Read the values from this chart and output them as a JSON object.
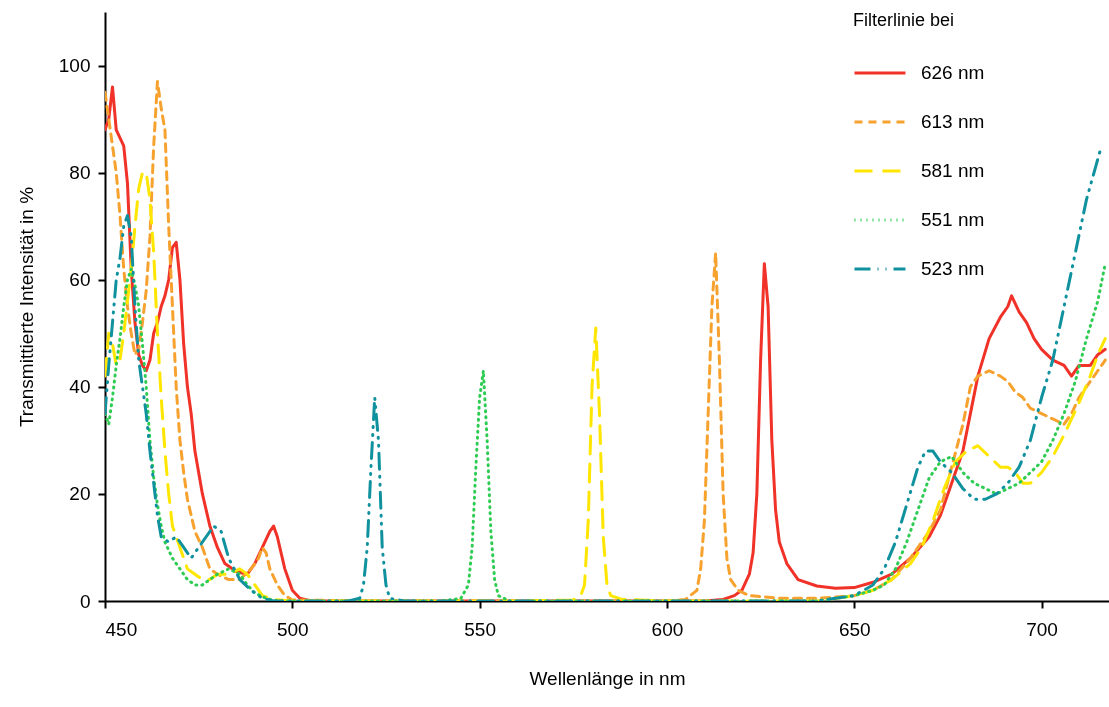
{
  "chart_data": {
    "type": "line",
    "xlabel": "Wellenlänge in nm",
    "ylabel": "Transmittierte Intensität in %",
    "legend_title": "Filterlinie bei",
    "legend": "top right",
    "grid": false,
    "xlim": [
      450,
      718
    ],
    "xticks": [
      450,
      500,
      550,
      600,
      650,
      700
    ],
    "ylim": [
      0,
      110
    ],
    "yticks": [
      0,
      20,
      40,
      60,
      80,
      100
    ],
    "series": [
      {
        "name": "626 nm",
        "color": "#f03228",
        "line_style": "solid",
        "x": [
          450,
          451,
          452,
          453,
          455,
          456,
          457,
          458,
          459,
          460,
          461,
          462,
          463,
          464,
          465,
          466,
          467,
          468,
          469,
          470,
          471,
          472,
          473,
          474,
          476,
          478,
          480,
          482,
          485,
          488,
          490,
          492,
          494,
          495,
          496,
          498,
          500,
          502,
          505,
          520,
          550,
          600,
          610,
          615,
          618,
          620,
          622,
          623,
          624,
          625,
          626,
          627,
          628,
          629,
          630,
          632,
          635,
          640,
          645,
          650,
          655,
          660,
          665,
          670,
          673,
          676,
          679,
          681,
          683,
          686,
          689,
          691,
          692,
          694,
          696,
          698,
          700,
          703,
          706,
          708,
          710,
          713,
          715,
          717
        ],
        "values": [
          88,
          90,
          96,
          88,
          85,
          78,
          62,
          52,
          46,
          44,
          43,
          45,
          50,
          52,
          55,
          57,
          60,
          66,
          67,
          60,
          48,
          40,
          35,
          28,
          20,
          14,
          10,
          7,
          5.5,
          5,
          7,
          10,
          13,
          14,
          12,
          6,
          2,
          0.5,
          0,
          0,
          0,
          0,
          0,
          0.3,
          1,
          2,
          5,
          9,
          20,
          45,
          63,
          55,
          30,
          17,
          11,
          7,
          4,
          2.8,
          2.4,
          2.5,
          3.5,
          5,
          8,
          12,
          16,
          22,
          28,
          35,
          42,
          49,
          53,
          55,
          57,
          54,
          52,
          49,
          47,
          45,
          44,
          42,
          44,
          44,
          46,
          47
        ]
      },
      {
        "name": "613 nm",
        "color": "#f7a12f",
        "line_style": "dashed",
        "x": [
          450,
          451,
          452,
          453,
          454,
          455,
          456,
          457,
          458,
          459,
          460,
          461,
          462,
          463,
          464,
          465,
          466,
          467,
          468,
          469,
          470,
          471,
          472,
          474,
          476,
          478,
          480,
          483,
          486,
          489,
          491,
          492,
          493,
          494,
          496,
          498,
          500,
          520,
          600,
          605,
          608,
          609,
          610,
          611,
          612,
          613,
          614,
          615,
          616,
          617,
          619,
          622,
          630,
          640,
          650,
          655,
          660,
          665,
          670,
          673,
          676,
          679,
          681,
          683,
          686,
          689,
          691,
          693,
          695,
          697,
          700,
          703,
          706,
          708,
          710,
          713,
          715,
          717
        ],
        "values": [
          95,
          90,
          85,
          80,
          72,
          62,
          55,
          50,
          46,
          47,
          52,
          58,
          68,
          85,
          97,
          92,
          88,
          70,
          55,
          40,
          30,
          24,
          19,
          13,
          10,
          6,
          5,
          4,
          4,
          6,
          8,
          10,
          9,
          6,
          3,
          1,
          0.2,
          0,
          0,
          0.3,
          2,
          6,
          15,
          35,
          55,
          65,
          45,
          20,
          8,
          4,
          2,
          1,
          0.5,
          0.5,
          1,
          2,
          4,
          8,
          13,
          17,
          25,
          33,
          40,
          42,
          43,
          42,
          41,
          39,
          38,
          36,
          35,
          34,
          33,
          35,
          38,
          41,
          43,
          45
        ]
      },
      {
        "name": "581 nm",
        "color": "#ffe600",
        "line_style": "longdash",
        "x": [
          450,
          451,
          452,
          453,
          454,
          455,
          456,
          457,
          458,
          459,
          460,
          461,
          462,
          463,
          464,
          465,
          466,
          467,
          468,
          470,
          472,
          474,
          476,
          478,
          480,
          483,
          486,
          488,
          490,
          492,
          495,
          500,
          560,
          575,
          577,
          578,
          579,
          580,
          581,
          582,
          583,
          584,
          585,
          588,
          600,
          640,
          650,
          655,
          660,
          665,
          668,
          671,
          674,
          677,
          680,
          683,
          686,
          689,
          691,
          693,
          695,
          697,
          700,
          703,
          706,
          708,
          710,
          713,
          715,
          717
        ],
        "values": [
          42,
          50,
          48,
          44,
          45,
          50,
          56,
          62,
          70,
          77,
          80,
          80,
          75,
          65,
          50,
          38,
          28,
          20,
          14,
          10,
          6,
          5,
          4,
          4,
          5,
          5,
          6,
          5,
          3,
          1,
          0.3,
          0,
          0,
          0.2,
          1,
          3,
          15,
          40,
          51,
          35,
          12,
          3,
          1,
          0.3,
          0,
          0,
          1,
          2,
          4,
          7,
          10,
          15,
          21,
          26,
          28,
          29,
          27,
          25,
          25,
          24,
          22,
          22,
          24,
          27,
          31,
          34,
          37,
          42,
          46,
          49
        ]
      },
      {
        "name": "551 nm",
        "color": "#2ecc52",
        "line_style": "dotted",
        "x": [
          450,
          451,
          452,
          453,
          454,
          455,
          456,
          457,
          458,
          459,
          460,
          461,
          462,
          463,
          464,
          465,
          466,
          468,
          470,
          472,
          474,
          476,
          478,
          480,
          483,
          486,
          488,
          490,
          493,
          496,
          540,
          545,
          547,
          548,
          549,
          550,
          551,
          552,
          553,
          554,
          555,
          558,
          640,
          650,
          655,
          658,
          661,
          664,
          667,
          670,
          673,
          676,
          679,
          682,
          685,
          688,
          691,
          694,
          697,
          700,
          703,
          706,
          709,
          712,
          715,
          717
        ],
        "values": [
          35,
          33,
          38,
          44,
          49,
          55,
          60,
          62,
          59,
          55,
          48,
          40,
          30,
          23,
          18,
          14,
          11,
          8,
          6,
          4,
          3,
          3,
          4,
          5,
          6,
          5,
          3,
          1.5,
          0.5,
          0,
          0,
          0.5,
          3,
          10,
          25,
          38,
          43,
          30,
          13,
          4,
          1,
          0,
          0,
          1,
          2,
          3,
          6,
          11,
          17,
          23,
          26,
          27,
          24,
          22,
          21,
          20,
          21,
          22,
          24,
          26,
          30,
          35,
          41,
          49,
          56,
          63
        ]
      },
      {
        "name": "523 nm",
        "color": "#0f919e",
        "line_style": "dashdot",
        "x": [
          450,
          451,
          452,
          453,
          454,
          455,
          456,
          457,
          458,
          459,
          460,
          461,
          462,
          463,
          464,
          465,
          467,
          469,
          471,
          473,
          475,
          477,
          479,
          481,
          483,
          486,
          489,
          492,
          495,
          515,
          518,
          519,
          520,
          521,
          522,
          523,
          524,
          525,
          526,
          530,
          640,
          650,
          655,
          658,
          661,
          664,
          667,
          669,
          671,
          673,
          676,
          679,
          682,
          685,
          688,
          691,
          694,
          697,
          700,
          703,
          706,
          709,
          712,
          714,
          716
        ],
        "values": [
          35,
          44,
          52,
          60,
          64,
          70,
          72,
          68,
          55,
          45,
          40,
          35,
          28,
          22,
          16,
          12,
          11,
          12,
          10,
          8,
          10,
          12,
          14,
          13,
          8,
          4,
          2,
          0.5,
          0,
          0,
          0.5,
          3,
          10,
          25,
          38,
          30,
          10,
          3,
          0.5,
          0,
          0,
          1,
          3,
          6,
          11,
          18,
          25,
          28,
          28,
          26,
          24,
          21,
          19,
          19,
          20,
          22,
          25,
          30,
          38,
          45,
          55,
          65,
          75,
          80,
          85
        ]
      }
    ]
  }
}
